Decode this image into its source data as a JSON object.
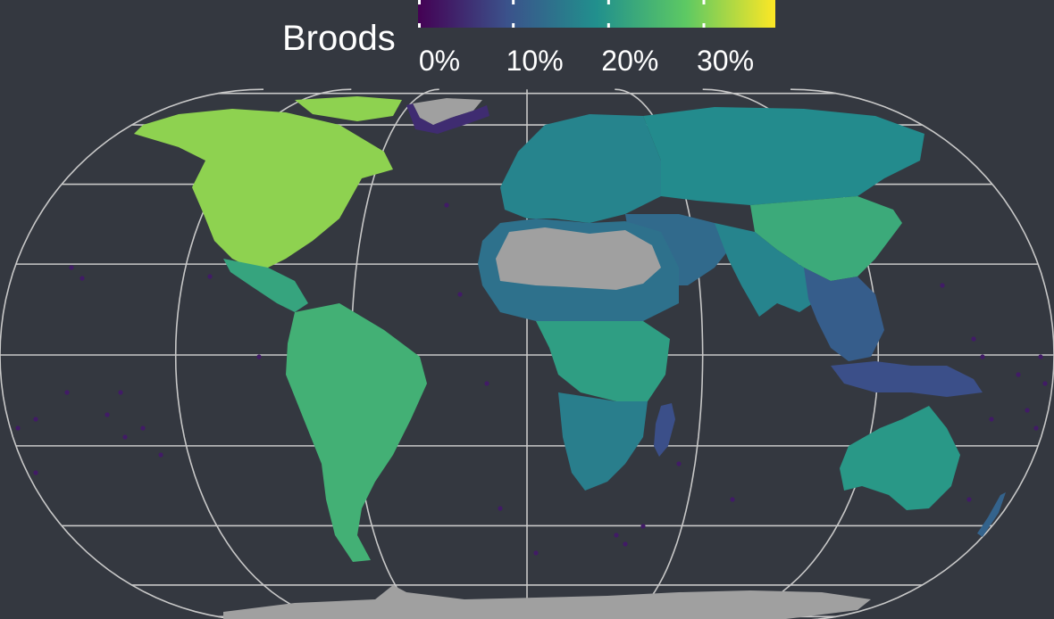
{
  "legend": {
    "title": "Broods",
    "ticks": [
      {
        "value": 0,
        "label": "0%"
      },
      {
        "value": 10,
        "label": "10%"
      },
      {
        "value": 20,
        "label": "20%"
      },
      {
        "value": 30,
        "label": "30%"
      }
    ],
    "range": [
      0,
      37.5
    ],
    "colormap": [
      "#440154",
      "#3b528b",
      "#21908d",
      "#5dc963",
      "#fde725"
    ]
  },
  "map": {
    "projection": "Eckert IV style world map",
    "background": "#343840",
    "graticule_color": "#c8c8c8",
    "no_data_color": "#a0a0a0",
    "meridian_spacing_deg": 60,
    "parallel_spacing_deg": 20,
    "regions": [
      {
        "name": "North America",
        "share": 31
      },
      {
        "name": "Central America",
        "share": 22
      },
      {
        "name": "South America",
        "share": 24
      },
      {
        "name": "Europe",
        "share": 17
      },
      {
        "name": "North Asia",
        "share": 18
      },
      {
        "name": "East Asia",
        "share": 23
      },
      {
        "name": "South Asia",
        "share": 17
      },
      {
        "name": "Middle East",
        "share": 13
      },
      {
        "name": "Sahel",
        "share": 14
      },
      {
        "name": "Central Africa",
        "share": 21
      },
      {
        "name": "Southern Africa",
        "share": 16
      },
      {
        "name": "Madagascar",
        "share": 9
      },
      {
        "name": "Southeast Asia",
        "share": 11
      },
      {
        "name": "Indonesia",
        "share": 9
      },
      {
        "name": "Australia",
        "share": 20
      },
      {
        "name": "New Zealand",
        "share": 12
      },
      {
        "name": "Greenland coast",
        "share": 5
      },
      {
        "name": "Pacific islands",
        "share": 3
      }
    ]
  }
}
